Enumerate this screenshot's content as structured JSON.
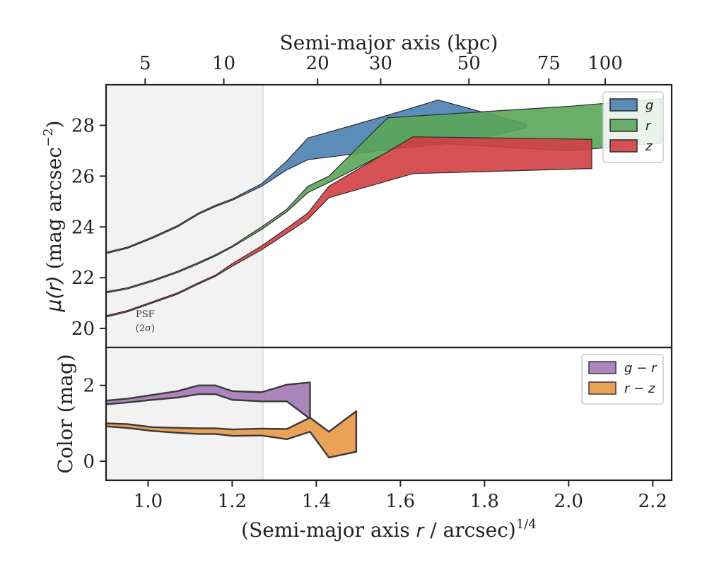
{
  "chart_data": [
    {
      "type": "area",
      "panel": "surface-brightness",
      "ylabel": "μ(r) (mag arcsec⁻²)",
      "top_xlabel": "Semi-major axis (kpc)",
      "top_ticks": [
        {
          "label": "5",
          "x": 0.993
        },
        {
          "label": "10",
          "x": 1.18
        },
        {
          "label": "20",
          "x": 1.403
        },
        {
          "label": "30",
          "x": 1.553
        },
        {
          "label": "50",
          "x": 1.763
        },
        {
          "label": "75",
          "x": 1.953
        },
        {
          "label": "100",
          "x": 2.087
        }
      ],
      "xlim": [
        0.9,
        2.245
      ],
      "ylim": [
        29.6,
        19.25
      ],
      "yticks": [
        20,
        22,
        24,
        26,
        28
      ],
      "psf_region": {
        "x": [
          0.9,
          1.273
        ],
        "label_line1": "PSF",
        "label_line2": "(2σ)"
      },
      "legend_position": "upper-right",
      "series": [
        {
          "name": "g",
          "color": "#4a7fb0",
          "upper": [
            [
              0.9,
              22.95
            ],
            [
              0.95,
              23.15
            ],
            [
              1.01,
              23.55
            ],
            [
              1.07,
              24.0
            ],
            [
              1.12,
              24.5
            ],
            [
              1.16,
              24.8
            ],
            [
              1.2,
              25.05
            ],
            [
              1.27,
              25.6
            ],
            [
              1.33,
              26.25
            ],
            [
              1.38,
              26.65
            ],
            [
              1.43,
              26.75
            ],
            [
              1.57,
              27.05
            ],
            [
              1.75,
              27.35
            ],
            [
              1.9,
              27.9
            ]
          ],
          "lower": [
            [
              0.9,
              23.0
            ],
            [
              0.95,
              23.2
            ],
            [
              1.01,
              23.6
            ],
            [
              1.07,
              24.05
            ],
            [
              1.12,
              24.55
            ],
            [
              1.16,
              24.85
            ],
            [
              1.2,
              25.1
            ],
            [
              1.27,
              25.7
            ],
            [
              1.33,
              26.6
            ],
            [
              1.38,
              27.5
            ],
            [
              1.57,
              28.4
            ],
            [
              1.69,
              29.0
            ],
            [
              1.8,
              28.5
            ],
            [
              1.9,
              28.05
            ]
          ]
        },
        {
          "name": "r",
          "color": "#5aa55a",
          "upper": [
            [
              0.9,
              21.4
            ],
            [
              0.95,
              21.55
            ],
            [
              1.01,
              21.85
            ],
            [
              1.07,
              22.2
            ],
            [
              1.12,
              22.55
            ],
            [
              1.16,
              22.85
            ],
            [
              1.2,
              23.2
            ],
            [
              1.27,
              23.9
            ],
            [
              1.33,
              24.6
            ],
            [
              1.38,
              25.35
            ],
            [
              1.43,
              25.75
            ],
            [
              1.57,
              26.95
            ],
            [
              1.63,
              27.35
            ],
            [
              2.0,
              27.0
            ],
            [
              2.22,
              27.3
            ]
          ],
          "lower": [
            [
              0.9,
              21.45
            ],
            [
              0.95,
              21.6
            ],
            [
              1.01,
              21.9
            ],
            [
              1.07,
              22.25
            ],
            [
              1.12,
              22.6
            ],
            [
              1.16,
              22.9
            ],
            [
              1.2,
              23.25
            ],
            [
              1.27,
              24.0
            ],
            [
              1.33,
              24.7
            ],
            [
              1.38,
              25.6
            ],
            [
              1.43,
              26.0
            ],
            [
              1.57,
              28.3
            ],
            [
              2.0,
              28.75
            ],
            [
              2.22,
              29.05
            ]
          ]
        },
        {
          "name": "z",
          "color": "#d23f43",
          "upper": [
            [
              0.9,
              20.45
            ],
            [
              0.95,
              20.65
            ],
            [
              1.01,
              21.0
            ],
            [
              1.07,
              21.35
            ],
            [
              1.12,
              21.75
            ],
            [
              1.16,
              22.05
            ],
            [
              1.2,
              22.45
            ],
            [
              1.27,
              23.1
            ],
            [
              1.33,
              23.75
            ],
            [
              1.38,
              24.3
            ],
            [
              1.43,
              25.15
            ],
            [
              1.63,
              26.1
            ],
            [
              2.055,
              26.3
            ]
          ],
          "lower": [
            [
              0.9,
              20.5
            ],
            [
              0.95,
              20.7
            ],
            [
              1.01,
              21.05
            ],
            [
              1.07,
              21.4
            ],
            [
              1.12,
              21.8
            ],
            [
              1.16,
              22.1
            ],
            [
              1.2,
              22.55
            ],
            [
              1.27,
              23.25
            ],
            [
              1.33,
              23.95
            ],
            [
              1.38,
              24.55
            ],
            [
              1.43,
              25.6
            ],
            [
              1.63,
              27.55
            ],
            [
              2.055,
              27.45
            ]
          ]
        }
      ]
    },
    {
      "type": "area",
      "panel": "color",
      "xlabel": "(Semi-major axis r / arcsec)^1/4",
      "ylabel": "Color (mag)",
      "xlim": [
        0.9,
        2.245
      ],
      "xticks": [
        1.0,
        1.2,
        1.4,
        1.6,
        1.8,
        2.0,
        2.2
      ],
      "ylim": [
        -0.5,
        3.0
      ],
      "yticks": [
        0,
        2
      ],
      "legend_position": "upper-right",
      "series": [
        {
          "name": "g − r",
          "color": "#a77eb8",
          "upper": [
            [
              0.9,
              1.6
            ],
            [
              0.95,
              1.65
            ],
            [
              1.01,
              1.75
            ],
            [
              1.07,
              1.85
            ],
            [
              1.12,
              2.0
            ],
            [
              1.16,
              2.0
            ],
            [
              1.2,
              1.85
            ],
            [
              1.27,
              1.82
            ],
            [
              1.33,
              2.02
            ],
            [
              1.385,
              2.08
            ]
          ],
          "lower": [
            [
              0.9,
              1.5
            ],
            [
              0.95,
              1.55
            ],
            [
              1.01,
              1.62
            ],
            [
              1.07,
              1.68
            ],
            [
              1.12,
              1.77
            ],
            [
              1.16,
              1.77
            ],
            [
              1.2,
              1.62
            ],
            [
              1.27,
              1.58
            ],
            [
              1.33,
              1.58
            ],
            [
              1.385,
              1.12
            ]
          ]
        },
        {
          "name": "r − z",
          "color": "#e99c4f",
          "upper": [
            [
              0.9,
              1.0
            ],
            [
              0.95,
              0.98
            ],
            [
              1.01,
              0.9
            ],
            [
              1.07,
              0.88
            ],
            [
              1.12,
              0.87
            ],
            [
              1.16,
              0.87
            ],
            [
              1.2,
              0.84
            ],
            [
              1.27,
              0.86
            ],
            [
              1.33,
              0.85
            ],
            [
              1.385,
              1.15
            ],
            [
              1.43,
              0.78
            ],
            [
              1.495,
              1.32
            ]
          ],
          "lower": [
            [
              0.9,
              0.92
            ],
            [
              0.95,
              0.88
            ],
            [
              1.01,
              0.8
            ],
            [
              1.07,
              0.75
            ],
            [
              1.12,
              0.72
            ],
            [
              1.16,
              0.72
            ],
            [
              1.2,
              0.67
            ],
            [
              1.27,
              0.68
            ],
            [
              1.33,
              0.58
            ],
            [
              1.385,
              0.78
            ],
            [
              1.43,
              0.1
            ],
            [
              1.495,
              0.25
            ]
          ]
        }
      ]
    }
  ]
}
